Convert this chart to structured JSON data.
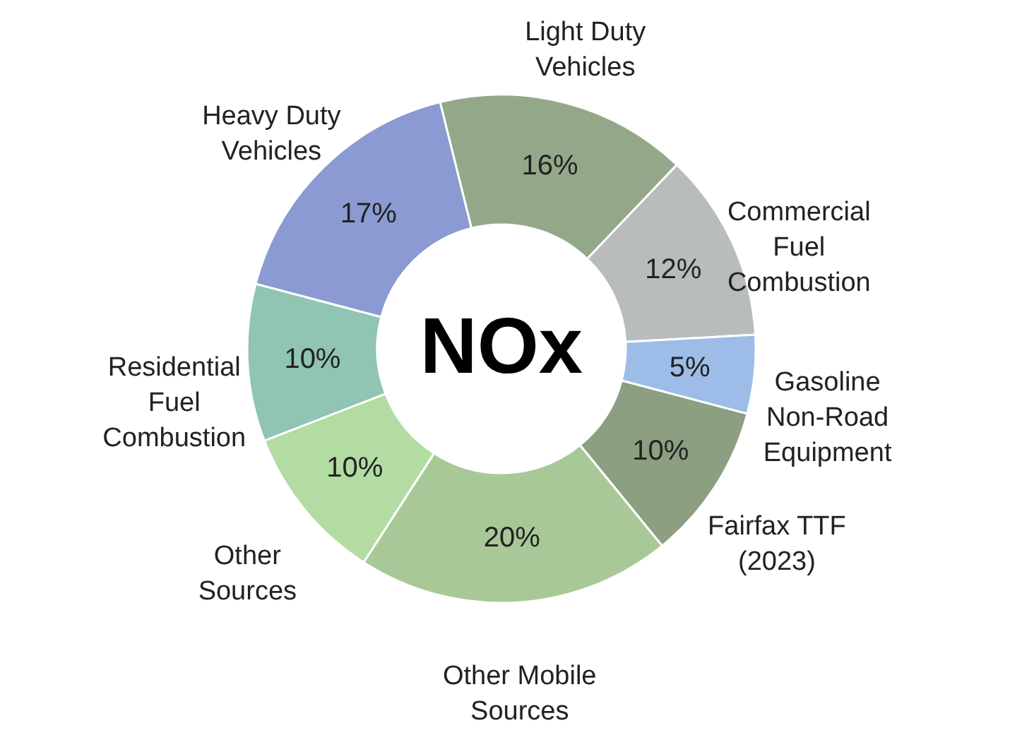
{
  "chart_data": {
    "type": "donut",
    "title": "NOx",
    "categories": [
      "Light Duty Vehicles",
      "Commercial Fuel Combustion",
      "Gasoline Non-Road Equipment",
      "Fairfax TTF (2023)",
      "Other Mobile Sources",
      "Other Sources",
      "Residential Fuel Combustion",
      "Heavy Duty Vehicles"
    ],
    "values": [
      16,
      12,
      5,
      10,
      20,
      10,
      10,
      17
    ],
    "value_labels": [
      "16%",
      "12%",
      "5%",
      "10%",
      "20%",
      "10%",
      "10%",
      "17%"
    ],
    "colors": [
      "#93a889",
      "#b9bcbc",
      "#9dbde8",
      "#8c9f80",
      "#a9c898",
      "#b2dca2",
      "#8fc5b2",
      "#8b9ad2"
    ]
  }
}
